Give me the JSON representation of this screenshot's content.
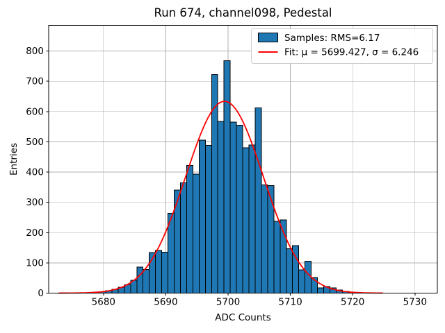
{
  "title": "Run 674, channel098, Pedestal",
  "xlabel": "ADC Counts",
  "ylabel": "Entries",
  "legend": {
    "position": "upper right",
    "items": [
      {
        "type": "patch",
        "label": "Samples: RMS=6.17"
      },
      {
        "type": "line",
        "label": "Fit: μ = 5699.427, σ = 6.246"
      }
    ]
  },
  "colors": {
    "bar_fill": "#1f77b4",
    "bar_edge": "#000000",
    "fit_line": "#ff0000",
    "grid": "#b0b0b0",
    "axes": "#000000",
    "background": "#ffffff",
    "legend_border": "#cccccc",
    "legend_fill": "#ffffff"
  },
  "chart_data": {
    "type": "bar",
    "subtype": "histogram",
    "grid": true,
    "bin_width": 1,
    "bin_edge_offset": 0.35,
    "categories": [
      5678,
      5679,
      5680,
      5681,
      5682,
      5683,
      5684,
      5685,
      5686,
      5687,
      5688,
      5689,
      5690,
      5691,
      5692,
      5693,
      5694,
      5695,
      5696,
      5697,
      5698,
      5699,
      5700,
      5701,
      5702,
      5703,
      5704,
      5705,
      5706,
      5707,
      5708,
      5709,
      5710,
      5711,
      5712,
      5713,
      5714,
      5715,
      5716,
      5717,
      5718,
      5719,
      5720
    ],
    "values": [
      1,
      3,
      5,
      8,
      13,
      19,
      27,
      42,
      86,
      78,
      134,
      141,
      135,
      264,
      341,
      365,
      422,
      393,
      505,
      488,
      722,
      567,
      768,
      565,
      555,
      480,
      490,
      612,
      358,
      355,
      237,
      242,
      147,
      157,
      77,
      106,
      52,
      17,
      22,
      17,
      10,
      6,
      2
    ],
    "fit": {
      "mu": 5699.427,
      "sigma": 6.246,
      "amplitude": 634,
      "x_start": 5672.8,
      "x_end": 5724.9
    },
    "x_ticks": [
      5680,
      5690,
      5700,
      5710,
      5720,
      5730
    ],
    "y_ticks": [
      0,
      100,
      200,
      300,
      400,
      500,
      600,
      700,
      800
    ],
    "xlim": [
      5671.2,
      5733.6
    ],
    "ylim": [
      0,
      885
    ]
  }
}
